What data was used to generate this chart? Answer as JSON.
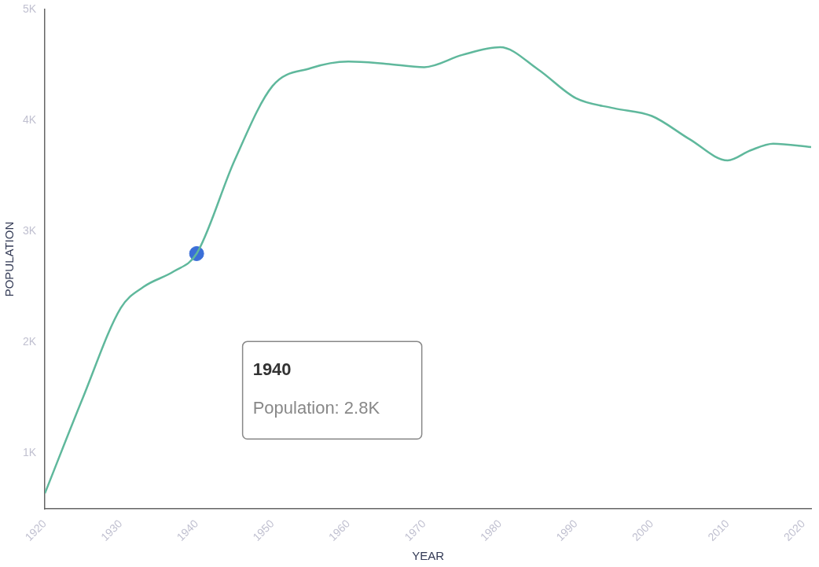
{
  "chart_data": {
    "type": "line",
    "xlabel": "YEAR",
    "ylabel": "POPULATION",
    "xlim": [
      1920,
      2021
    ],
    "xticks": [
      1920,
      1930,
      1940,
      1950,
      1960,
      1970,
      1980,
      1990,
      2000,
      2010,
      2020
    ],
    "ylim": [
      500,
      5000
    ],
    "yticks": [
      {
        "value": 1000,
        "label": "1K"
      },
      {
        "value": 2000,
        "label": "2K"
      },
      {
        "value": 3000,
        "label": "3K"
      },
      {
        "value": 4000,
        "label": "4K"
      },
      {
        "value": 5000,
        "label": "5K"
      }
    ],
    "grid": false,
    "legend": false,
    "marker": "none",
    "line_style": "solid",
    "series": [
      {
        "color": "#5fb89c",
        "x": [
          1920,
          1925,
          1930,
          1933,
          1937,
          1940,
          1945,
          1950,
          1955,
          1960,
          1965,
          1970,
          1975,
          1980,
          1985,
          1990,
          1995,
          2000,
          2005,
          2010,
          2013,
          2016,
          2021
        ],
        "values": [
          640,
          1500,
          2310,
          2500,
          2640,
          2800,
          3640,
          4310,
          4470,
          4530,
          4510,
          4480,
          4590,
          4660,
          4460,
          4200,
          4110,
          4040,
          3830,
          3640,
          3730,
          3790,
          3760
        ]
      },
      {
        "type": "scatter",
        "color": "#3b6fd8",
        "marker": "circle",
        "x": [
          1940
        ],
        "values": [
          2800
        ]
      }
    ],
    "annotations": [
      "1940",
      "Population: 2.8K"
    ]
  }
}
